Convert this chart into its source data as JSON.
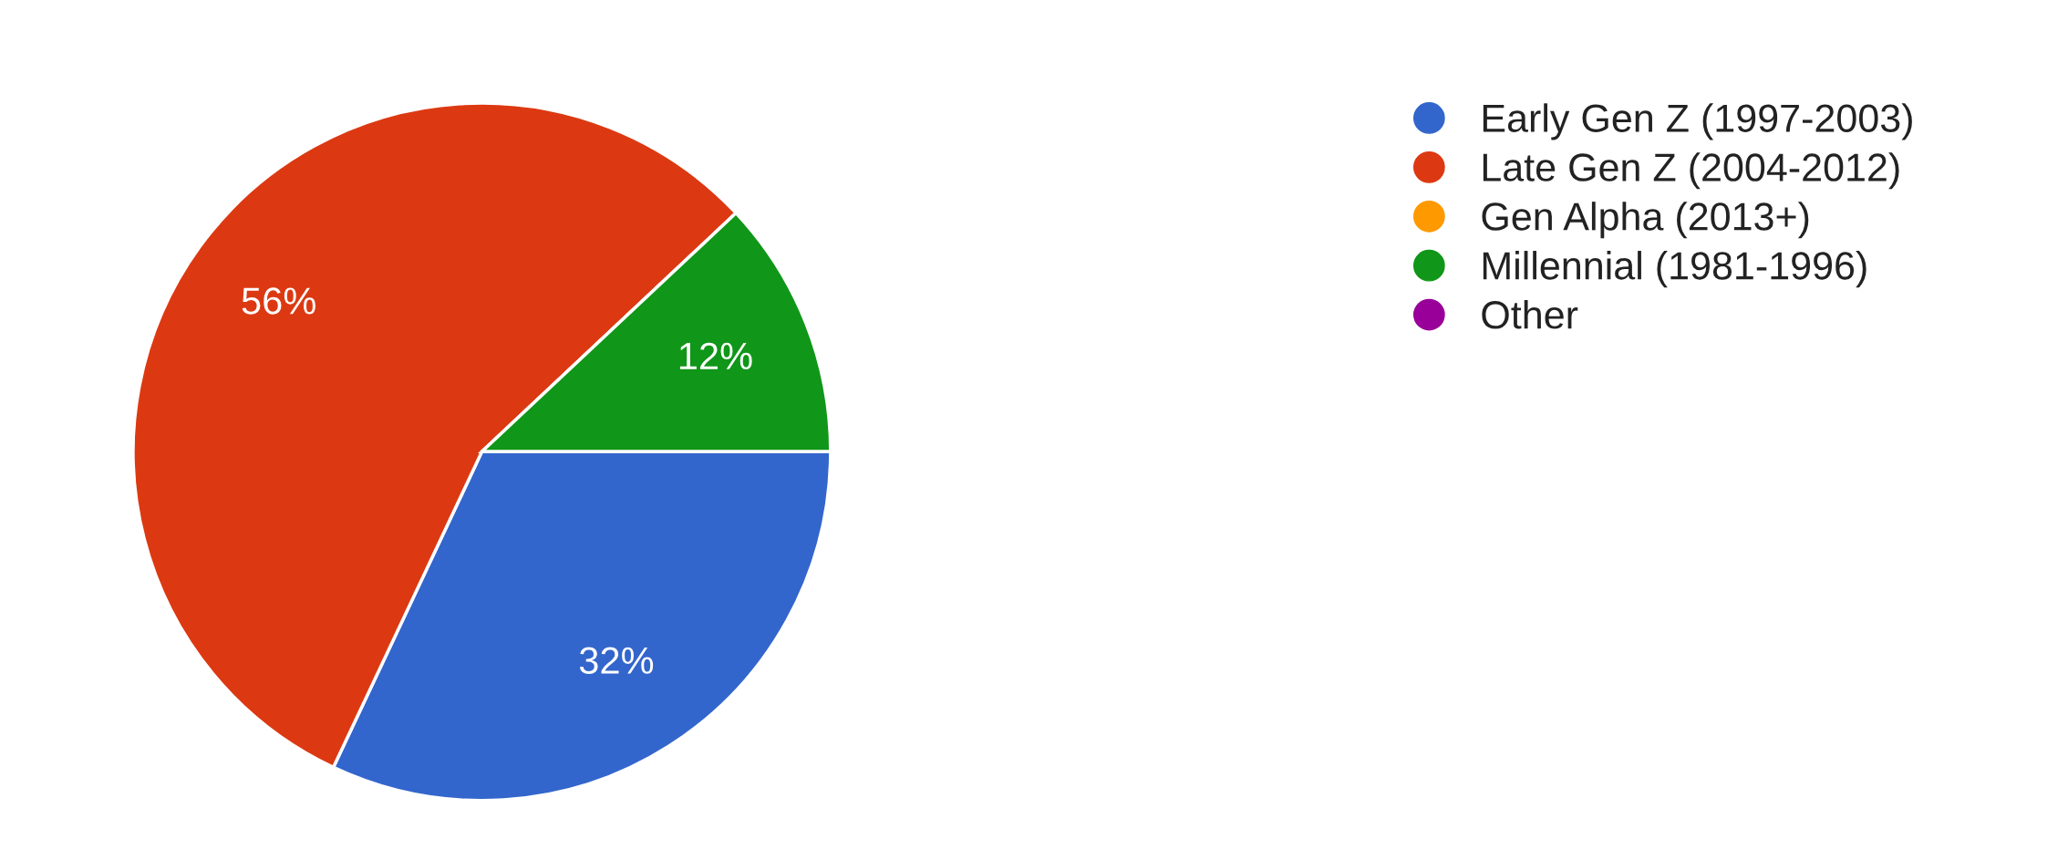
{
  "chart_data": {
    "type": "pie",
    "categories": [
      "Early Gen Z (1997-2003)",
      "Late Gen Z (2004-2012)",
      "Gen Alpha (2013+)",
      "Millennial (1981-1996)",
      "Other"
    ],
    "values": [
      32,
      56,
      0,
      12,
      0
    ],
    "colors": [
      "#3366cc",
      "#dc3912",
      "#ff9900",
      "#109618",
      "#990099"
    ],
    "value_labels": [
      "32%",
      "56%",
      null,
      "12%",
      null
    ],
    "legend": "right"
  }
}
